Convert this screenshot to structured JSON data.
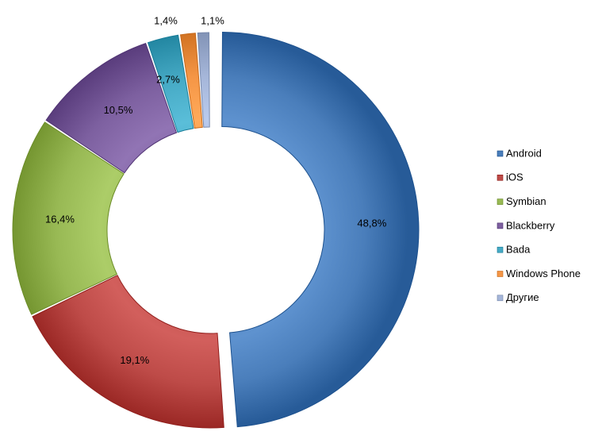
{
  "chart_data": {
    "type": "pie",
    "donut": true,
    "title": "",
    "legend_position": "right",
    "series": [
      {
        "name": "",
        "slices": [
          {
            "label": "Android",
            "value": 48.8,
            "value_label": "48,8%",
            "color": "#4a7ebb"
          },
          {
            "label": "iOS",
            "value": 19.1,
            "value_label": "19,1%",
            "color": "#be4b48"
          },
          {
            "label": "Symbian",
            "value": 16.4,
            "value_label": "16,4%",
            "color": "#98b954"
          },
          {
            "label": "Blackberry",
            "value": 10.5,
            "value_label": "10,5%",
            "color": "#7d60a0"
          },
          {
            "label": "Bada",
            "value": 2.7,
            "value_label": "2,7%",
            "color": "#46aac5"
          },
          {
            "label": "Windows Phone",
            "value": 1.4,
            "value_label": "1,4%",
            "color": "#f59646"
          },
          {
            "label": "Другие",
            "value": 1.1,
            "value_label": "1,1%",
            "color": "#a5b6d9"
          }
        ]
      }
    ]
  }
}
